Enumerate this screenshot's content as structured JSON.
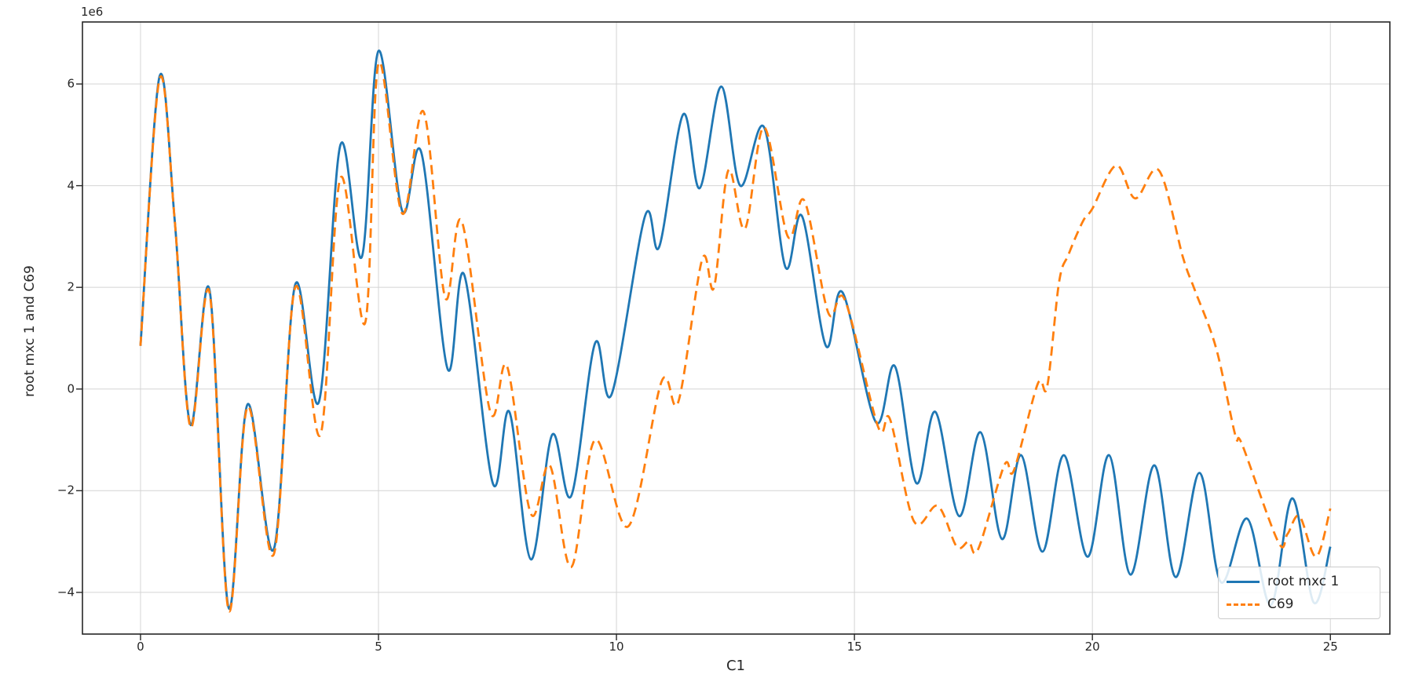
{
  "chart_data": {
    "type": "line",
    "title": "",
    "xlabel": "C1",
    "ylabel": "root mxc 1 and C69",
    "y_offset_label": "1e6",
    "grid": true,
    "legend_position": "lower right",
    "background_color": "#ffffff",
    "grid_color": "#d4d4d4",
    "spine_color": "#262626",
    "xlim": [
      -1.22,
      26.25
    ],
    "ylim": [
      -4.82,
      7.22
    ],
    "x_ticks": [
      0,
      5,
      10,
      15,
      20,
      25
    ],
    "x_tick_labels": [
      "0",
      "5",
      "10",
      "15",
      "20",
      "25"
    ],
    "y_ticks": [
      6,
      4,
      2,
      0,
      -2,
      -4
    ],
    "y_tick_labels": [
      "6",
      "4",
      "2",
      "0",
      "−2",
      "−4"
    ],
    "y_units": "1e6",
    "series": [
      {
        "name": "root mxc 1",
        "color": "#1f77b4",
        "style": "solid",
        "points": [
          [
            0,
            0.85
          ],
          [
            0.4,
            6.15
          ],
          [
            0.72,
            3.3
          ],
          [
            1.05,
            -0.7
          ],
          [
            1.45,
            1.95
          ],
          [
            1.85,
            -4.3
          ],
          [
            2.25,
            -0.3
          ],
          [
            2.8,
            -3.15
          ],
          [
            3.25,
            2.05
          ],
          [
            3.75,
            -0.25
          ],
          [
            4.2,
            4.8
          ],
          [
            4.65,
            2.6
          ],
          [
            5.0,
            6.65
          ],
          [
            5.5,
            3.5
          ],
          [
            5.9,
            4.65
          ],
          [
            6.45,
            0.4
          ],
          [
            6.8,
            2.25
          ],
          [
            7.4,
            -1.85
          ],
          [
            7.75,
            -0.45
          ],
          [
            8.2,
            -3.35
          ],
          [
            8.65,
            -0.9
          ],
          [
            9.05,
            -2.1
          ],
          [
            9.55,
            0.9
          ],
          [
            9.9,
            -0.1
          ],
          [
            10.6,
            3.4
          ],
          [
            10.9,
            2.8
          ],
          [
            11.4,
            5.4
          ],
          [
            11.75,
            3.95
          ],
          [
            12.2,
            5.95
          ],
          [
            12.6,
            4.0
          ],
          [
            13.1,
            5.15
          ],
          [
            13.55,
            2.4
          ],
          [
            13.9,
            3.4
          ],
          [
            14.4,
            0.85
          ],
          [
            14.75,
            1.9
          ],
          [
            15.45,
            -0.65
          ],
          [
            15.85,
            0.45
          ],
          [
            16.3,
            -1.85
          ],
          [
            16.7,
            -0.45
          ],
          [
            17.2,
            -2.5
          ],
          [
            17.65,
            -0.85
          ],
          [
            18.1,
            -2.95
          ],
          [
            18.5,
            -1.3
          ],
          [
            18.95,
            -3.2
          ],
          [
            19.4,
            -1.3
          ],
          [
            19.9,
            -3.3
          ],
          [
            20.35,
            -1.3
          ],
          [
            20.8,
            -3.65
          ],
          [
            21.3,
            -1.5
          ],
          [
            21.75,
            -3.7
          ],
          [
            22.25,
            -1.65
          ],
          [
            22.7,
            -3.8
          ],
          [
            23.25,
            -2.55
          ],
          [
            23.75,
            -4.25
          ],
          [
            24.2,
            -2.15
          ],
          [
            24.65,
            -4.2
          ],
          [
            25,
            -3.1
          ]
        ]
      },
      {
        "name": "C69",
        "color": "#ff7f0e",
        "style": "dashed",
        "points": [
          [
            0,
            0.85
          ],
          [
            0.4,
            6.1
          ],
          [
            0.72,
            3.3
          ],
          [
            1.05,
            -0.75
          ],
          [
            1.45,
            1.9
          ],
          [
            1.85,
            -4.35
          ],
          [
            2.25,
            -0.35
          ],
          [
            2.8,
            -3.25
          ],
          [
            3.25,
            2.0
          ],
          [
            3.78,
            -0.9
          ],
          [
            4.2,
            4.15
          ],
          [
            4.72,
            1.3
          ],
          [
            5.0,
            6.4
          ],
          [
            5.5,
            3.45
          ],
          [
            5.95,
            5.45
          ],
          [
            6.4,
            1.8
          ],
          [
            6.75,
            3.3
          ],
          [
            7.35,
            -0.45
          ],
          [
            7.7,
            0.45
          ],
          [
            8.2,
            -2.45
          ],
          [
            8.6,
            -1.5
          ],
          [
            9.05,
            -3.5
          ],
          [
            9.55,
            -1.0
          ],
          [
            10.25,
            -2.7
          ],
          [
            10.95,
            0.15
          ],
          [
            11.3,
            -0.25
          ],
          [
            11.8,
            2.55
          ],
          [
            12.05,
            2.0
          ],
          [
            12.35,
            4.3
          ],
          [
            12.7,
            3.15
          ],
          [
            13.1,
            5.15
          ],
          [
            13.6,
            3.0
          ],
          [
            13.95,
            3.7
          ],
          [
            14.45,
            1.5
          ],
          [
            14.8,
            1.75
          ],
          [
            15.5,
            -0.75
          ],
          [
            15.75,
            -0.6
          ],
          [
            16.25,
            -2.6
          ],
          [
            16.75,
            -2.3
          ],
          [
            17.15,
            -3.1
          ],
          [
            17.4,
            -3.0
          ],
          [
            17.6,
            -3.15
          ],
          [
            18.15,
            -1.5
          ],
          [
            18.35,
            -1.6
          ],
          [
            18.85,
            0.1
          ],
          [
            19.05,
            0.05
          ],
          [
            19.3,
            2.1
          ],
          [
            19.5,
            2.65
          ],
          [
            19.8,
            3.3
          ],
          [
            20.0,
            3.55
          ],
          [
            20.5,
            4.4
          ],
          [
            20.9,
            3.75
          ],
          [
            21.4,
            4.3
          ],
          [
            21.9,
            2.6
          ],
          [
            22.15,
            1.95
          ],
          [
            22.6,
            0.8
          ],
          [
            23.0,
            -0.9
          ],
          [
            23.15,
            -1.1
          ],
          [
            23.9,
            -3.0
          ],
          [
            24.1,
            -2.85
          ],
          [
            24.35,
            -2.5
          ],
          [
            24.7,
            -3.3
          ],
          [
            25,
            -2.35
          ]
        ]
      }
    ]
  }
}
